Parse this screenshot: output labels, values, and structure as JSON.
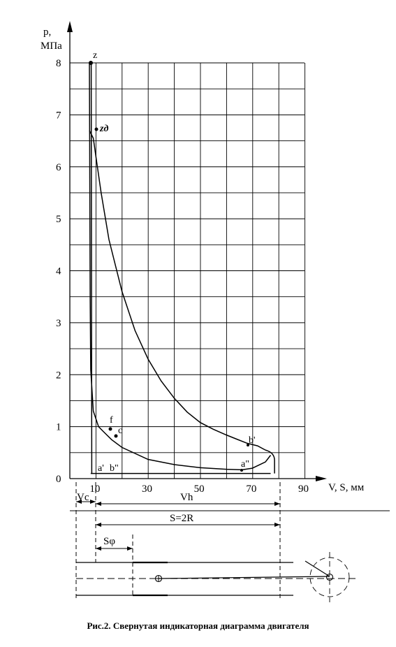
{
  "axes": {
    "y_label_line1": "p,",
    "y_label_line2": "МПа",
    "x_label": "V, S, мм",
    "y_ticks": [
      "0",
      "1",
      "2",
      "3",
      "4",
      "5",
      "6",
      "7",
      "8"
    ],
    "x_ticks": [
      "10",
      "30",
      "50",
      "70",
      "90"
    ]
  },
  "points": {
    "z": "z",
    "zd": "zд",
    "f": "f",
    "c": "c",
    "b_prime": "b'",
    "a_prime": "a'",
    "b_dprime": "b\"",
    "a_dprime": "a\""
  },
  "dimensions": {
    "vc": "Vc",
    "vh": "Vh",
    "stroke": "S=2R",
    "s_phi": "Sφ"
  },
  "caption": "Рис.2. Свернутая индикаторная диаграмма двигателя",
  "chart_data": {
    "type": "line",
    "xlabel": "V, S, мм",
    "ylabel": "p, МПа",
    "xlim": [
      0,
      90
    ],
    "ylim": [
      0,
      8
    ],
    "grid": true,
    "series": [
      {
        "name": "",
        "x": [
          75,
          72,
          68,
          64,
          60,
          55,
          50,
          45,
          40,
          35,
          30,
          25,
          20,
          15,
          12,
          10,
          9,
          8,
          7.5
        ],
        "y": [
          0.55,
          0.63,
          0.68,
          0.76,
          0.84,
          0.95,
          1.08,
          1.28,
          1.55,
          1.88,
          2.3,
          2.85,
          3.6,
          4.6,
          5.5,
          6.2,
          6.55,
          6.65,
          6.7
        ]
      },
      {
        "name": "",
        "x": [
          7.5,
          7.6,
          7.7,
          7.8,
          8.0,
          9.0,
          11,
          13,
          16,
          20,
          30,
          40,
          50,
          60,
          66,
          70,
          75,
          77
        ],
        "y": [
          8.0,
          6.5,
          5.0,
          3.5,
          2.1,
          1.3,
          1.0,
          0.9,
          0.75,
          0.6,
          0.37,
          0.27,
          0.21,
          0.18,
          0.17,
          0.2,
          0.32,
          0.45
        ]
      },
      {
        "name": "",
        "x": [
          8,
          40,
          77
        ],
        "y": [
          0.1,
          0.1,
          0.1
        ]
      }
    ],
    "annotations": [
      "z",
      "zд",
      "f",
      "c",
      "b'",
      "a'",
      "b\"",
      "a\""
    ]
  }
}
